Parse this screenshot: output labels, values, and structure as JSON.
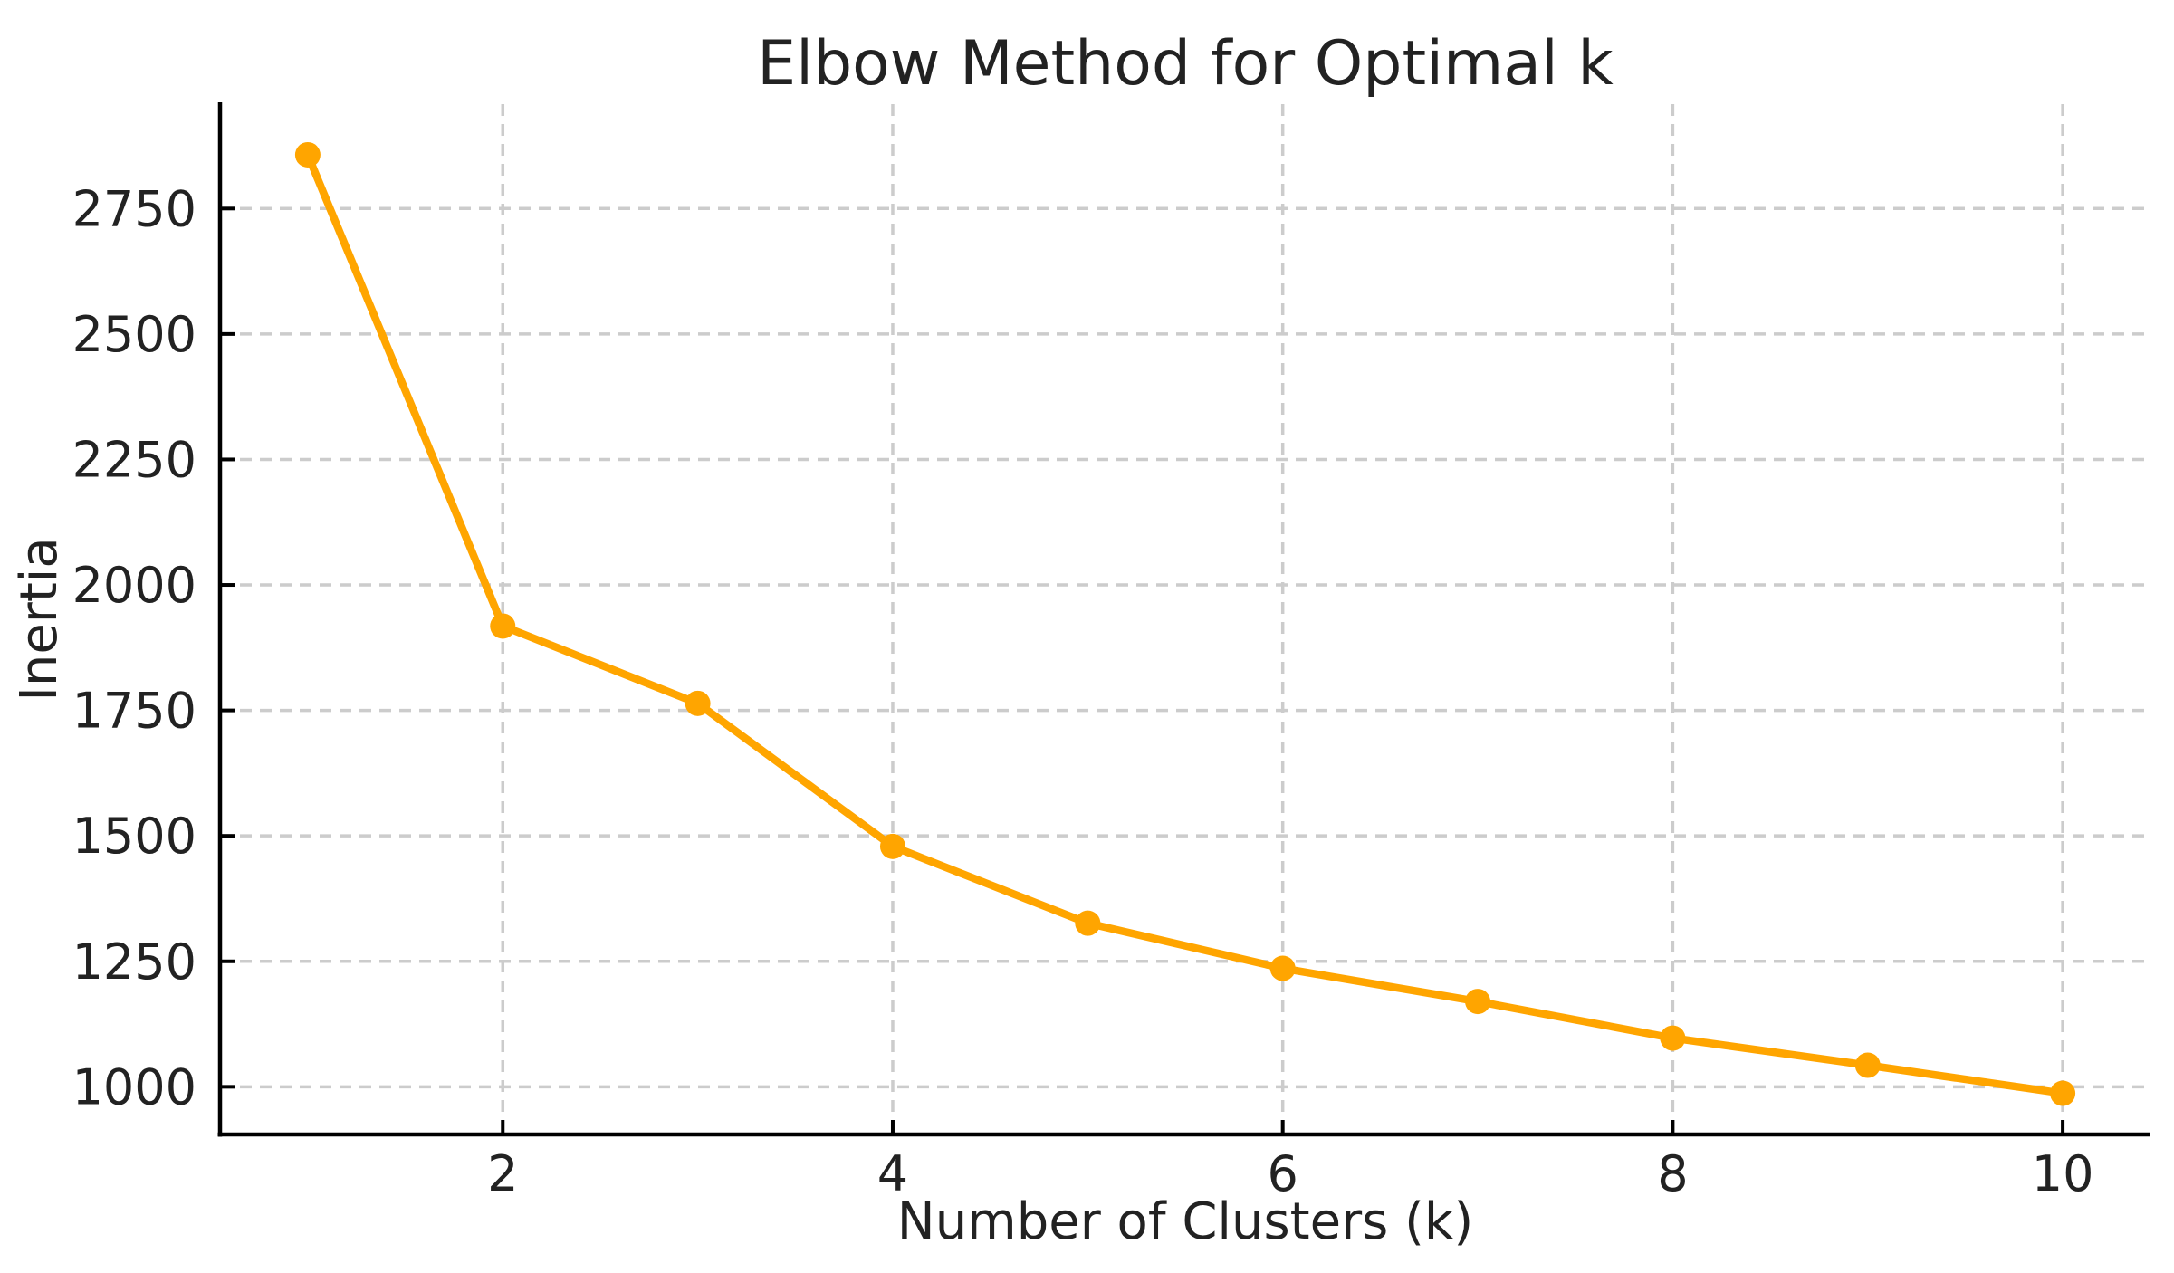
{
  "chart_data": {
    "type": "line",
    "title": "Elbow Method for Optimal k",
    "xlabel": "Number of Clusters (k)",
    "ylabel": "Inertia",
    "x": [
      1,
      2,
      3,
      4,
      5,
      6,
      7,
      8,
      9,
      10
    ],
    "series": [
      {
        "name": "Inertia",
        "values": [
          2857,
          1918,
          1764,
          1479,
          1326,
          1236,
          1170,
          1097,
          1043,
          987
        ]
      }
    ],
    "xticks": [
      2,
      4,
      6,
      8,
      10
    ],
    "yticks": [
      1000,
      1250,
      1500,
      1750,
      2000,
      2250,
      2500,
      2750
    ],
    "xlim": [
      0.55,
      10.45
    ],
    "ylim": [
      905,
      2958
    ],
    "grid": true,
    "grid_style": "dashed",
    "legend_position": "none",
    "line_color": "#FFA500",
    "marker_shape": "circle",
    "grid_color": "#CCCCCC",
    "spine_color": "#000000",
    "text_color": "#222222",
    "background_color": "#FFFFFF"
  }
}
